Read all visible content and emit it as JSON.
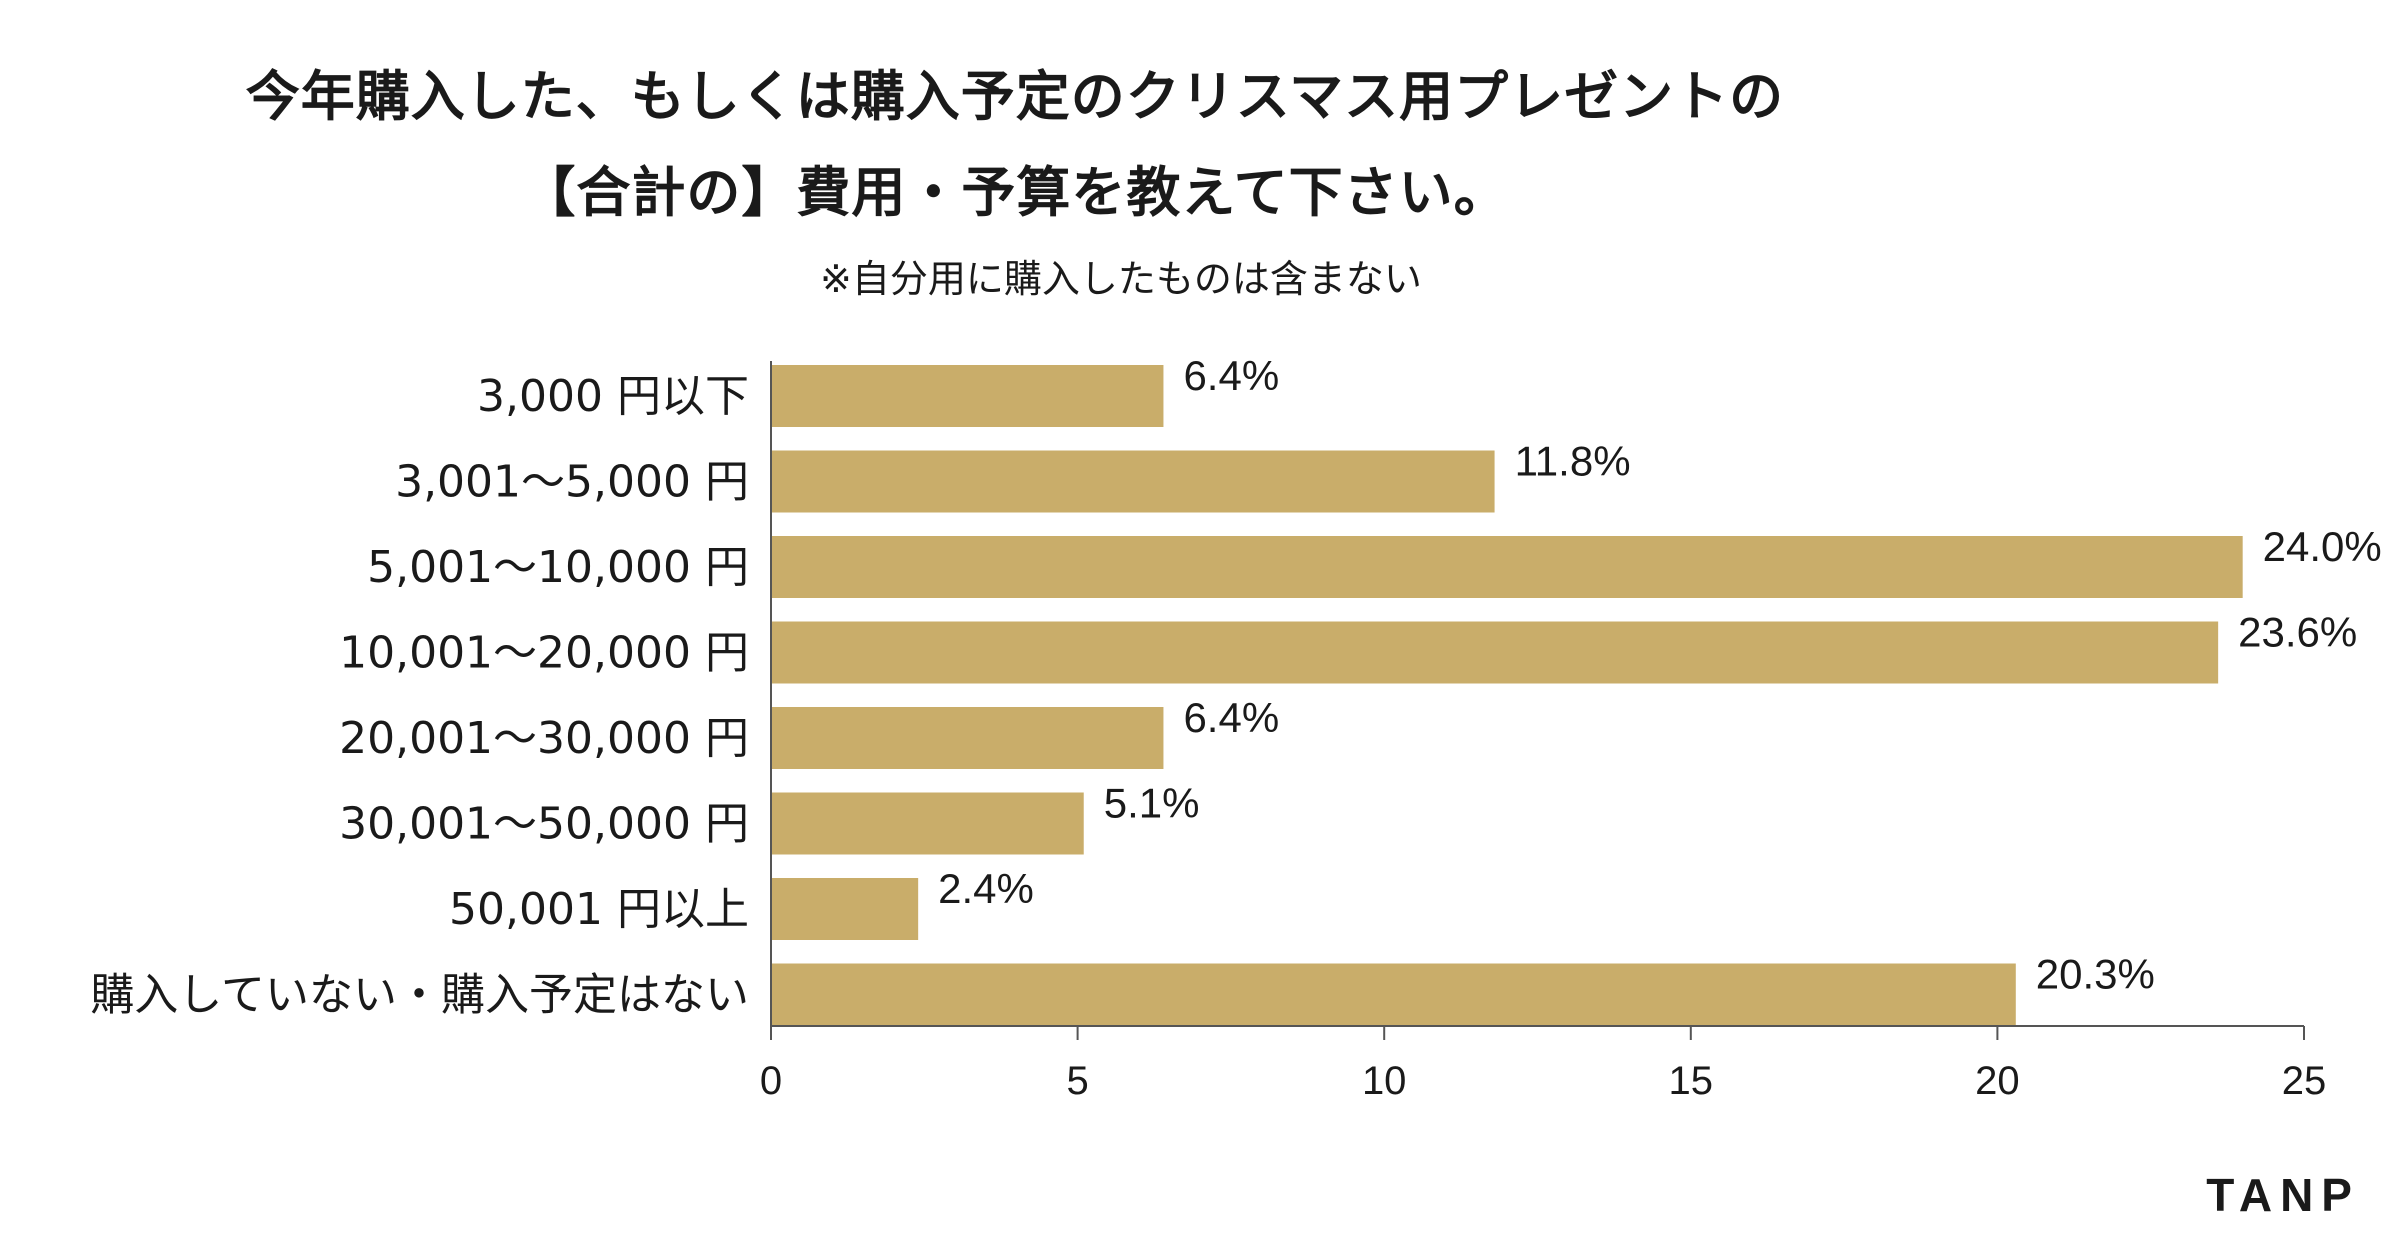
{
  "chart_data": {
    "type": "bar",
    "orientation": "horizontal",
    "title_line1": "今年購入した、もしくは購入予定のクリスマス用プレゼントの",
    "title_line2": "【合計の】費用・予算を教えて下さい。",
    "subtitle": "※自分用に購入したものは含まない",
    "categories": [
      "3,000 円以下",
      "3,001〜5,000 円",
      "5,001〜10,000 円",
      "10,001〜20,000 円",
      "20,001〜30,000 円",
      "30,001〜50,000 円",
      "50,001 円以上",
      "購入していない・購入予定はない"
    ],
    "values": [
      6.4,
      11.8,
      24.0,
      23.6,
      6.4,
      5.1,
      2.4,
      20.3
    ],
    "value_labels": [
      "6.4%",
      "11.8%",
      "24.0%",
      "23.6%",
      "6.4%",
      "5.1%",
      "2.4%",
      "20.3%"
    ],
    "xlim": [
      0,
      25
    ],
    "xticks": [
      0,
      5,
      10,
      15,
      20,
      25
    ],
    "xtick_labels": [
      "0",
      "5",
      "10",
      "15",
      "20",
      "25"
    ],
    "bar_color": "#c9ad6a",
    "axis_color": "#555555"
  },
  "brand": {
    "logo_text": "TANP"
  }
}
